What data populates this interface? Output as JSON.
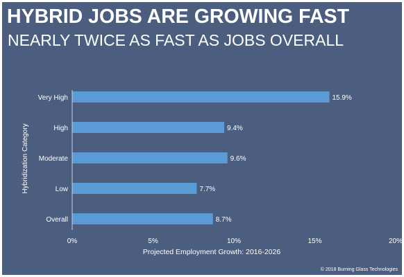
{
  "slide": {
    "title": "HYBRID JOBS ARE GROWING FAST",
    "subtitle": "NEARLY TWICE AS FAST AS JOBS OVERALL",
    "copyright": "© 2018 Burning Glass Technologies",
    "background_color": "#4c5e7f",
    "text_color": "#ffffff"
  },
  "chart_data": {
    "type": "bar",
    "orientation": "horizontal",
    "categories": [
      "Very High",
      "High",
      "Moderate",
      "Low",
      "Overall"
    ],
    "values": [
      15.9,
      9.4,
      9.6,
      7.7,
      8.7
    ],
    "value_labels": [
      "15.9%",
      "9.4%",
      "9.6%",
      "7.7%",
      "8.7%"
    ],
    "xlabel": "Projected Employment Growth: 2016-2026",
    "ylabel": "Hybridization Category",
    "xlim": [
      0,
      20
    ],
    "xticks": [
      0,
      5,
      10,
      15,
      20
    ],
    "xtick_labels": [
      "0%",
      "5%",
      "10%",
      "15%",
      "20%"
    ],
    "bar_color": "#5b9bd5",
    "grid": false,
    "legend": false
  }
}
